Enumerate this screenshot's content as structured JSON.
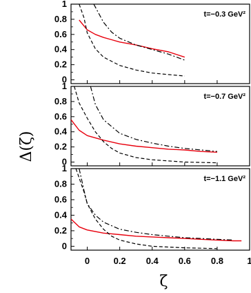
{
  "chart_data": [
    {
      "type": "line",
      "annotation": "t=−0.3 GeV²",
      "xlim": [
        -0.1,
        1.0
      ],
      "ylim": [
        -0.05,
        1.0
      ],
      "yticks": [
        "0",
        "0.2",
        "0.4",
        "0.6",
        "0.8",
        "1"
      ],
      "grid": false,
      "series": [
        {
          "style": "solid",
          "color": "#e8000d",
          "x": [
            -0.05,
            0.0,
            0.05,
            0.1,
            0.15,
            0.2,
            0.3,
            0.4,
            0.5,
            0.6
          ],
          "y": [
            0.79,
            0.66,
            0.6,
            0.56,
            0.53,
            0.5,
            0.46,
            0.41,
            0.37,
            0.3
          ]
        },
        {
          "style": "dashed",
          "color": "#000000",
          "x": [
            -0.05,
            -0.02,
            0.0,
            0.05,
            0.1,
            0.2,
            0.3,
            0.4,
            0.5,
            0.6
          ],
          "y": [
            1.0,
            0.82,
            0.62,
            0.41,
            0.3,
            0.19,
            0.13,
            0.09,
            0.07,
            0.05
          ]
        },
        {
          "style": "dashdot",
          "color": "#000000",
          "x": [
            0.04,
            0.1,
            0.15,
            0.2,
            0.3,
            0.4,
            0.5,
            0.6
          ],
          "y": [
            1.0,
            0.76,
            0.63,
            0.55,
            0.46,
            0.4,
            0.34,
            0.26
          ]
        }
      ]
    },
    {
      "type": "line",
      "annotation": "t=−0.7 GeV²",
      "xlim": [
        -0.1,
        1.0
      ],
      "ylim": [
        -0.05,
        1.0
      ],
      "yticks": [
        "0",
        "0.2",
        "0.4",
        "0.6",
        "0.8",
        "1"
      ],
      "grid": false,
      "series": [
        {
          "style": "solid",
          "color": "#e8000d",
          "x": [
            -0.1,
            -0.05,
            0.0,
            0.1,
            0.2,
            0.3,
            0.4,
            0.5,
            0.6,
            0.7,
            0.8
          ],
          "y": [
            0.56,
            0.42,
            0.35,
            0.29,
            0.24,
            0.21,
            0.19,
            0.17,
            0.16,
            0.14,
            0.13
          ]
        },
        {
          "style": "dashed",
          "color": "#000000",
          "x": [
            -0.08,
            -0.05,
            0.0,
            0.05,
            0.1,
            0.15,
            0.2,
            0.3,
            0.4,
            0.6,
            0.8
          ],
          "y": [
            1.0,
            0.78,
            0.58,
            0.4,
            0.27,
            0.18,
            0.12,
            0.06,
            0.03,
            0.0,
            -0.01
          ]
        },
        {
          "style": "dashdot",
          "color": "#000000",
          "x": [
            0.02,
            0.05,
            0.1,
            0.2,
            0.3,
            0.4,
            0.5,
            0.6,
            0.7,
            0.8
          ],
          "y": [
            1.0,
            0.76,
            0.56,
            0.38,
            0.3,
            0.25,
            0.21,
            0.18,
            0.16,
            0.14
          ]
        }
      ]
    },
    {
      "type": "line",
      "annotation": "t=−1.1 GeV²",
      "xlabel": "ζ",
      "xlim": [
        -0.1,
        1.0
      ],
      "ylim": [
        -0.05,
        1.0
      ],
      "xticks": [
        "0",
        "0.2",
        "0.4",
        "0.6",
        "0.8",
        "1"
      ],
      "yticks": [
        "0",
        "0.2",
        "0.4",
        "0.6",
        "0.8",
        "1"
      ],
      "grid": false,
      "series": [
        {
          "style": "solid",
          "color": "#e8000d",
          "x": [
            -0.1,
            -0.05,
            0.0,
            0.1,
            0.2,
            0.3,
            0.4,
            0.5,
            0.6,
            0.7,
            0.8,
            0.9,
            0.95
          ],
          "y": [
            0.35,
            0.25,
            0.21,
            0.17,
            0.15,
            0.13,
            0.12,
            0.11,
            0.1,
            0.09,
            0.08,
            0.07,
            0.07
          ]
        },
        {
          "style": "dashed",
          "color": "#000000",
          "x": [
            -0.07,
            -0.05,
            -0.02,
            0.0,
            0.05,
            0.1,
            0.15,
            0.2,
            0.3,
            0.4,
            0.6,
            0.8
          ],
          "y": [
            1.0,
            0.88,
            0.7,
            0.55,
            0.35,
            0.22,
            0.13,
            0.08,
            0.03,
            0.0,
            -0.02,
            -0.03
          ]
        },
        {
          "style": "dashdot",
          "color": "#000000",
          "x": [
            -0.05,
            -0.02,
            0.0,
            0.05,
            0.1,
            0.2,
            0.3,
            0.4,
            0.5,
            0.6,
            0.7,
            0.8,
            0.9
          ],
          "y": [
            1.0,
            0.72,
            0.55,
            0.4,
            0.31,
            0.22,
            0.18,
            0.15,
            0.13,
            0.11,
            0.1,
            0.09,
            0.08
          ]
        }
      ]
    }
  ],
  "ylabel": "Δ(ζ)"
}
